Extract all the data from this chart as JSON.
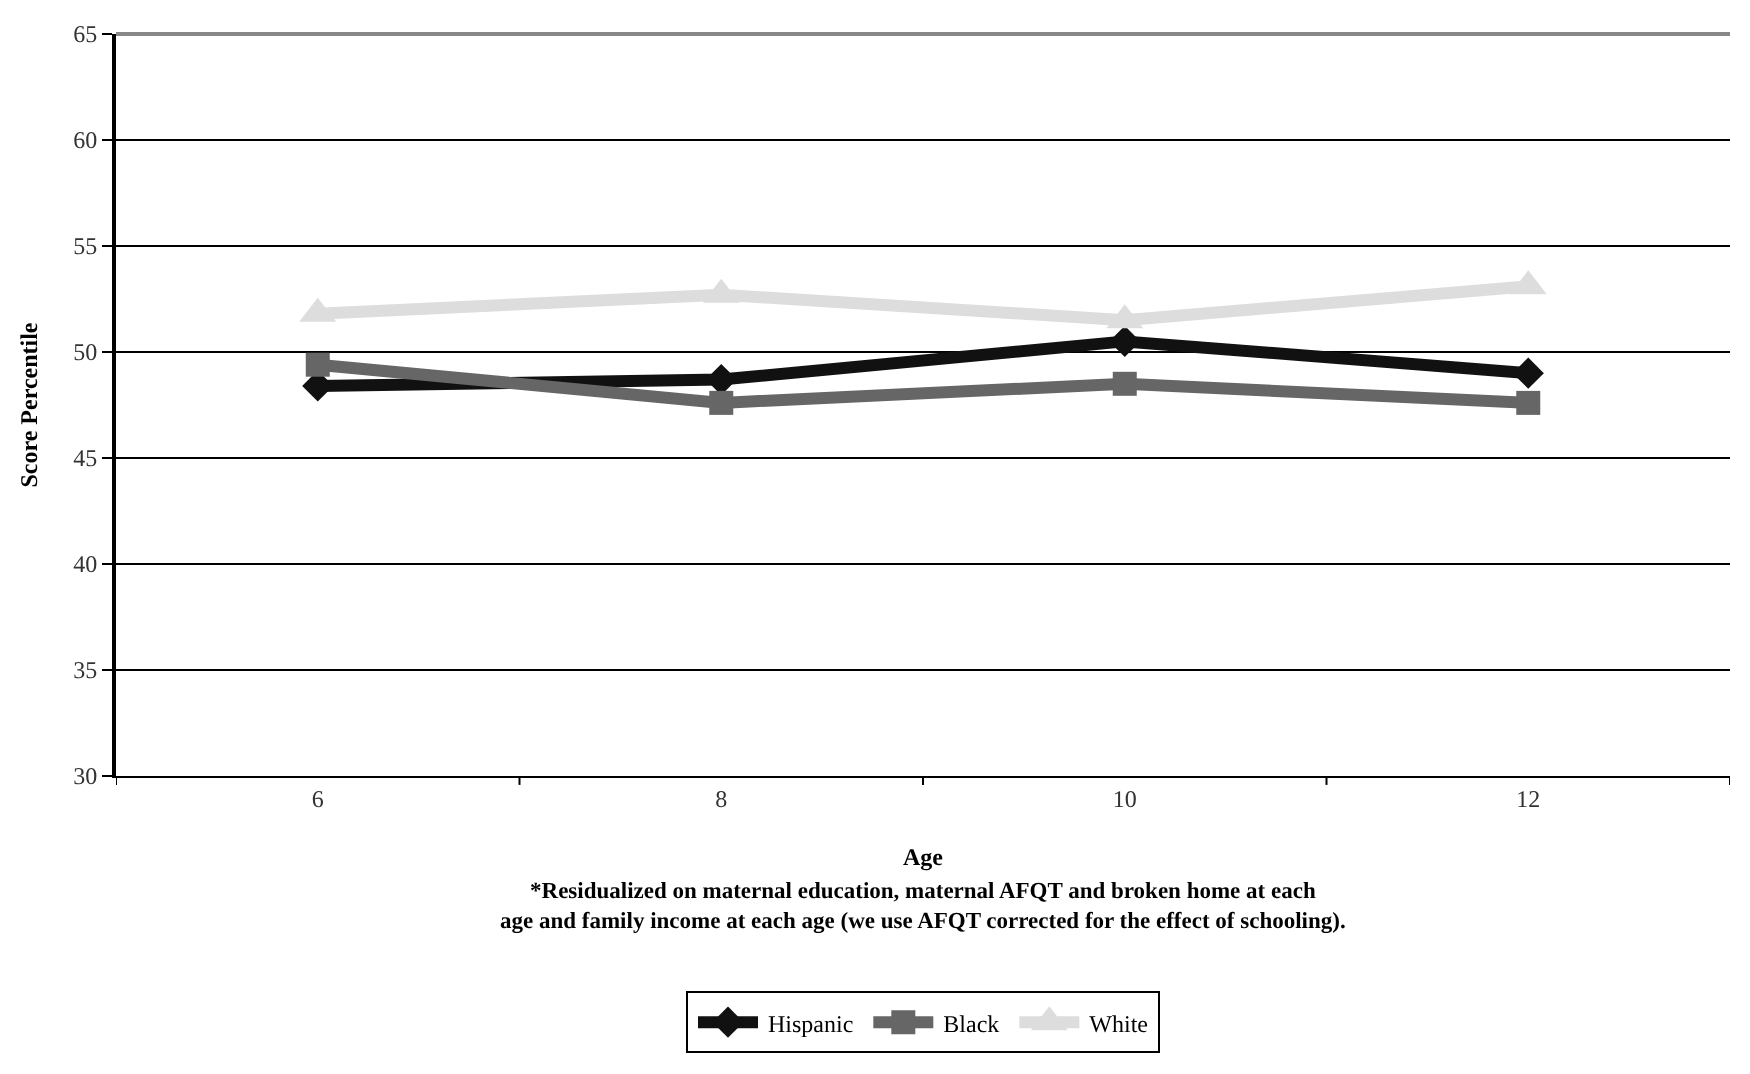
{
  "chart_data": {
    "type": "line",
    "xlabel": "Age",
    "ylabel": "Score Percentile",
    "categories": [
      "6",
      "8",
      "10",
      "12"
    ],
    "series": [
      {
        "name": "Hispanic",
        "color": "#111111",
        "values": [
          48.4,
          48.7,
          50.5,
          49.0
        ],
        "marker": "diamond"
      },
      {
        "name": "Black",
        "color": "#666666",
        "values": [
          49.4,
          47.6,
          48.5,
          47.6
        ],
        "marker": "square"
      },
      {
        "name": "White",
        "color": "#dddddd",
        "values": [
          51.8,
          52.7,
          51.5,
          53.1
        ],
        "marker": "triangle"
      }
    ],
    "ylim": [
      30,
      65
    ],
    "yticks": [
      30,
      35,
      40,
      45,
      50,
      55,
      60,
      65
    ],
    "grid": "y",
    "legend": "bottom",
    "line_style": "solid",
    "annotations": [
      "*Residualized on maternal education, maternal AFQT and broken home at each\nage and family income at each age (we use AFQT corrected for the effect of schooling)."
    ]
  }
}
